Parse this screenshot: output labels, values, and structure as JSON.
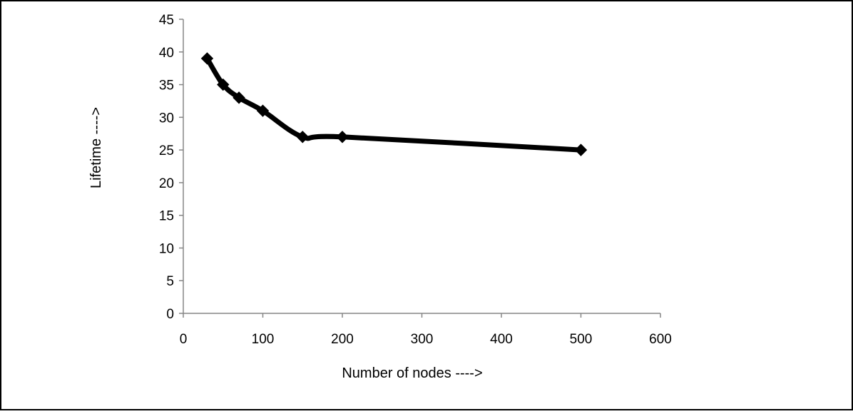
{
  "chart_data": {
    "type": "line",
    "xlabel": "Number of nodes ---->",
    "ylabel": "Lifetime ---->",
    "xlim": [
      0,
      600
    ],
    "ylim": [
      0,
      45
    ],
    "xticks": [
      "0",
      "100",
      "200",
      "300",
      "400",
      "500",
      "600"
    ],
    "yticks": [
      "0",
      "5",
      "10",
      "15",
      "20",
      "25",
      "30",
      "35",
      "40",
      "45"
    ],
    "grid": false,
    "legend": "none",
    "series": [
      {
        "x": [
          30,
          50,
          70,
          100,
          150,
          200,
          500
        ],
        "y": [
          39,
          35,
          33,
          31,
          27,
          27,
          25
        ],
        "marker": "diamond"
      }
    ],
    "colors": {
      "line": "#000000",
      "axis": "#868686",
      "border": "#000000"
    }
  }
}
